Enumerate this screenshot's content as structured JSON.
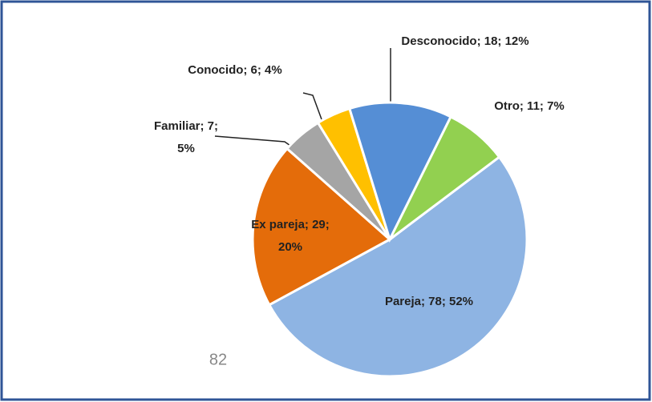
{
  "chart_data": {
    "type": "pie",
    "categories": [
      "Pareja",
      "Ex pareja",
      "Familiar",
      "Conocido",
      "Desconocido",
      "Otro"
    ],
    "values": [
      78,
      29,
      7,
      6,
      18,
      11
    ],
    "percentages": [
      52,
      20,
      5,
      4,
      12,
      7
    ],
    "value_labels": [
      "Pareja; 78; 52%",
      "Ex pareja; 29;\n20%",
      "Familiar; 7;\n5%",
      "Conocido; 6; 4%",
      "Desconocido; 18; 12%",
      "Otro; 11; 7%"
    ],
    "colors": [
      "#8eb4e3",
      "#e46c0a",
      "#a5a5a5",
      "#ffc000",
      "#558ed5",
      "#92d050"
    ],
    "annotation": "82"
  }
}
